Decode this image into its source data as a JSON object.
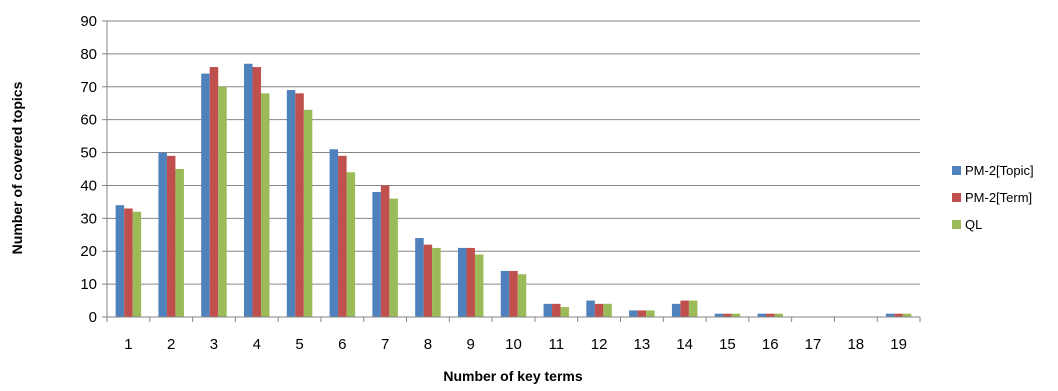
{
  "chart_data": {
    "type": "bar",
    "xlabel": "Number of key terms",
    "ylabel": "Number of covered topics",
    "ylim": [
      0,
      90
    ],
    "yticks": [
      0,
      10,
      20,
      30,
      40,
      50,
      60,
      70,
      80,
      90
    ],
    "categories": [
      "1",
      "2",
      "3",
      "4",
      "5",
      "6",
      "7",
      "8",
      "9",
      "10",
      "11",
      "12",
      "13",
      "14",
      "15",
      "16",
      "17",
      "18",
      "19"
    ],
    "grid": true,
    "legend_position": "right",
    "series": [
      {
        "name": "PM-2[Topic]",
        "color": "#4F81BD",
        "values": [
          34,
          50,
          74,
          77,
          69,
          51,
          38,
          24,
          21,
          14,
          4,
          5,
          2,
          4,
          1,
          1,
          0,
          0,
          1
        ]
      },
      {
        "name": "PM-2[Term]",
        "color": "#C0504D",
        "values": [
          33,
          49,
          76,
          76,
          68,
          49,
          40,
          22,
          21,
          14,
          4,
          4,
          2,
          5,
          1,
          1,
          0,
          0,
          1
        ]
      },
      {
        "name": "QL",
        "color": "#9BBB59",
        "values": [
          32,
          45,
          70,
          68,
          63,
          44,
          36,
          21,
          19,
          13,
          3,
          4,
          2,
          5,
          1,
          1,
          0,
          0,
          1
        ]
      }
    ]
  }
}
